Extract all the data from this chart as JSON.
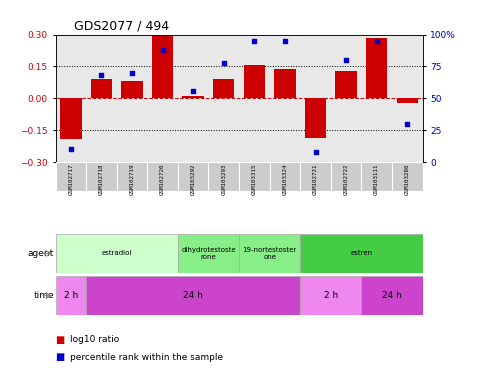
{
  "title": "GDS2077 / 494",
  "samples": [
    "GSM102717",
    "GSM102718",
    "GSM102719",
    "GSM102720",
    "GSM103292",
    "GSM103293",
    "GSM103315",
    "GSM103324",
    "GSM102721",
    "GSM102722",
    "GSM103111",
    "GSM103286"
  ],
  "log10_ratio": [
    -0.19,
    0.09,
    0.08,
    0.295,
    0.01,
    0.09,
    0.155,
    0.14,
    -0.185,
    0.13,
    0.285,
    -0.02
  ],
  "percentile_rank": [
    10,
    68,
    70,
    88,
    56,
    78,
    95,
    95,
    8,
    80,
    95,
    30
  ],
  "ylim": [
    -0.3,
    0.3
  ],
  "yticks_left": [
    -0.3,
    -0.15,
    0,
    0.15,
    0.3
  ],
  "yticks_right": [
    0,
    25,
    50,
    75,
    100
  ],
  "bar_color": "#cc0000",
  "dot_color": "#0000cc",
  "zero_line_color": "#cc0000",
  "dotted_line_color": "#000000",
  "bg_color": "#e8e8e8",
  "agent_groups": [
    {
      "label": "estradiol",
      "start": 0,
      "end": 4,
      "color": "#ccffcc"
    },
    {
      "label": "dihydrotestoste\nrone",
      "start": 4,
      "end": 6,
      "color": "#88ee88"
    },
    {
      "label": "19-nortestoster\none",
      "start": 6,
      "end": 8,
      "color": "#88ee88"
    },
    {
      "label": "estren",
      "start": 8,
      "end": 12,
      "color": "#44cc44"
    }
  ],
  "time_groups": [
    {
      "label": "2 h",
      "start": 0,
      "end": 1,
      "color": "#ee88ee"
    },
    {
      "label": "24 h",
      "start": 1,
      "end": 8,
      "color": "#cc44cc"
    },
    {
      "label": "2 h",
      "start": 8,
      "end": 10,
      "color": "#ee88ee"
    },
    {
      "label": "24 h",
      "start": 10,
      "end": 12,
      "color": "#cc44cc"
    }
  ],
  "legend_items": [
    {
      "label": "log10 ratio",
      "color": "#cc0000"
    },
    {
      "label": "percentile rank within the sample",
      "color": "#0000cc"
    }
  ]
}
